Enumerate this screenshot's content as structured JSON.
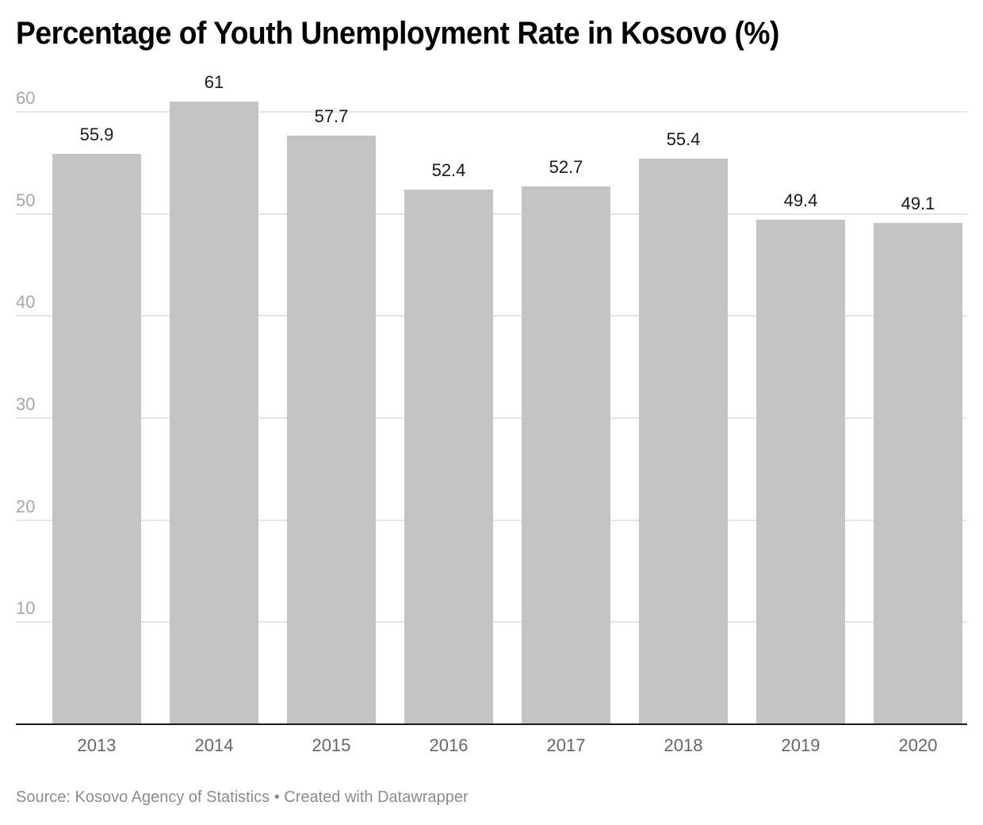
{
  "title": "Percentage of Youth Unemployment Rate in Kosovo (%)",
  "footer": "Source: Kosovo Agency of Statistics • Created with Datawrapper",
  "colors": {
    "bar": "#c4c4c4",
    "grid": "#e6e6e6",
    "axis": "#1a1a1a",
    "tick": "#a6a6a6"
  },
  "chart_data": {
    "type": "bar",
    "title": "Percentage of Youth Unemployment Rate in Kosovo (%)",
    "xlabel": "",
    "ylabel": "",
    "categories": [
      "2013",
      "2014",
      "2015",
      "2016",
      "2017",
      "2018",
      "2019",
      "2020"
    ],
    "values": [
      55.9,
      61,
      57.7,
      52.4,
      52.7,
      55.4,
      49.4,
      49.1
    ],
    "value_labels": [
      "55.9",
      "61",
      "57.7",
      "52.4",
      "52.7",
      "55.4",
      "49.4",
      "49.1"
    ],
    "yticks": [
      "10",
      "20",
      "30",
      "40",
      "50",
      "60"
    ],
    "ylim": [
      0,
      60
    ],
    "grid": true,
    "legend": "none",
    "source": "Kosovo Agency of Statistics"
  }
}
